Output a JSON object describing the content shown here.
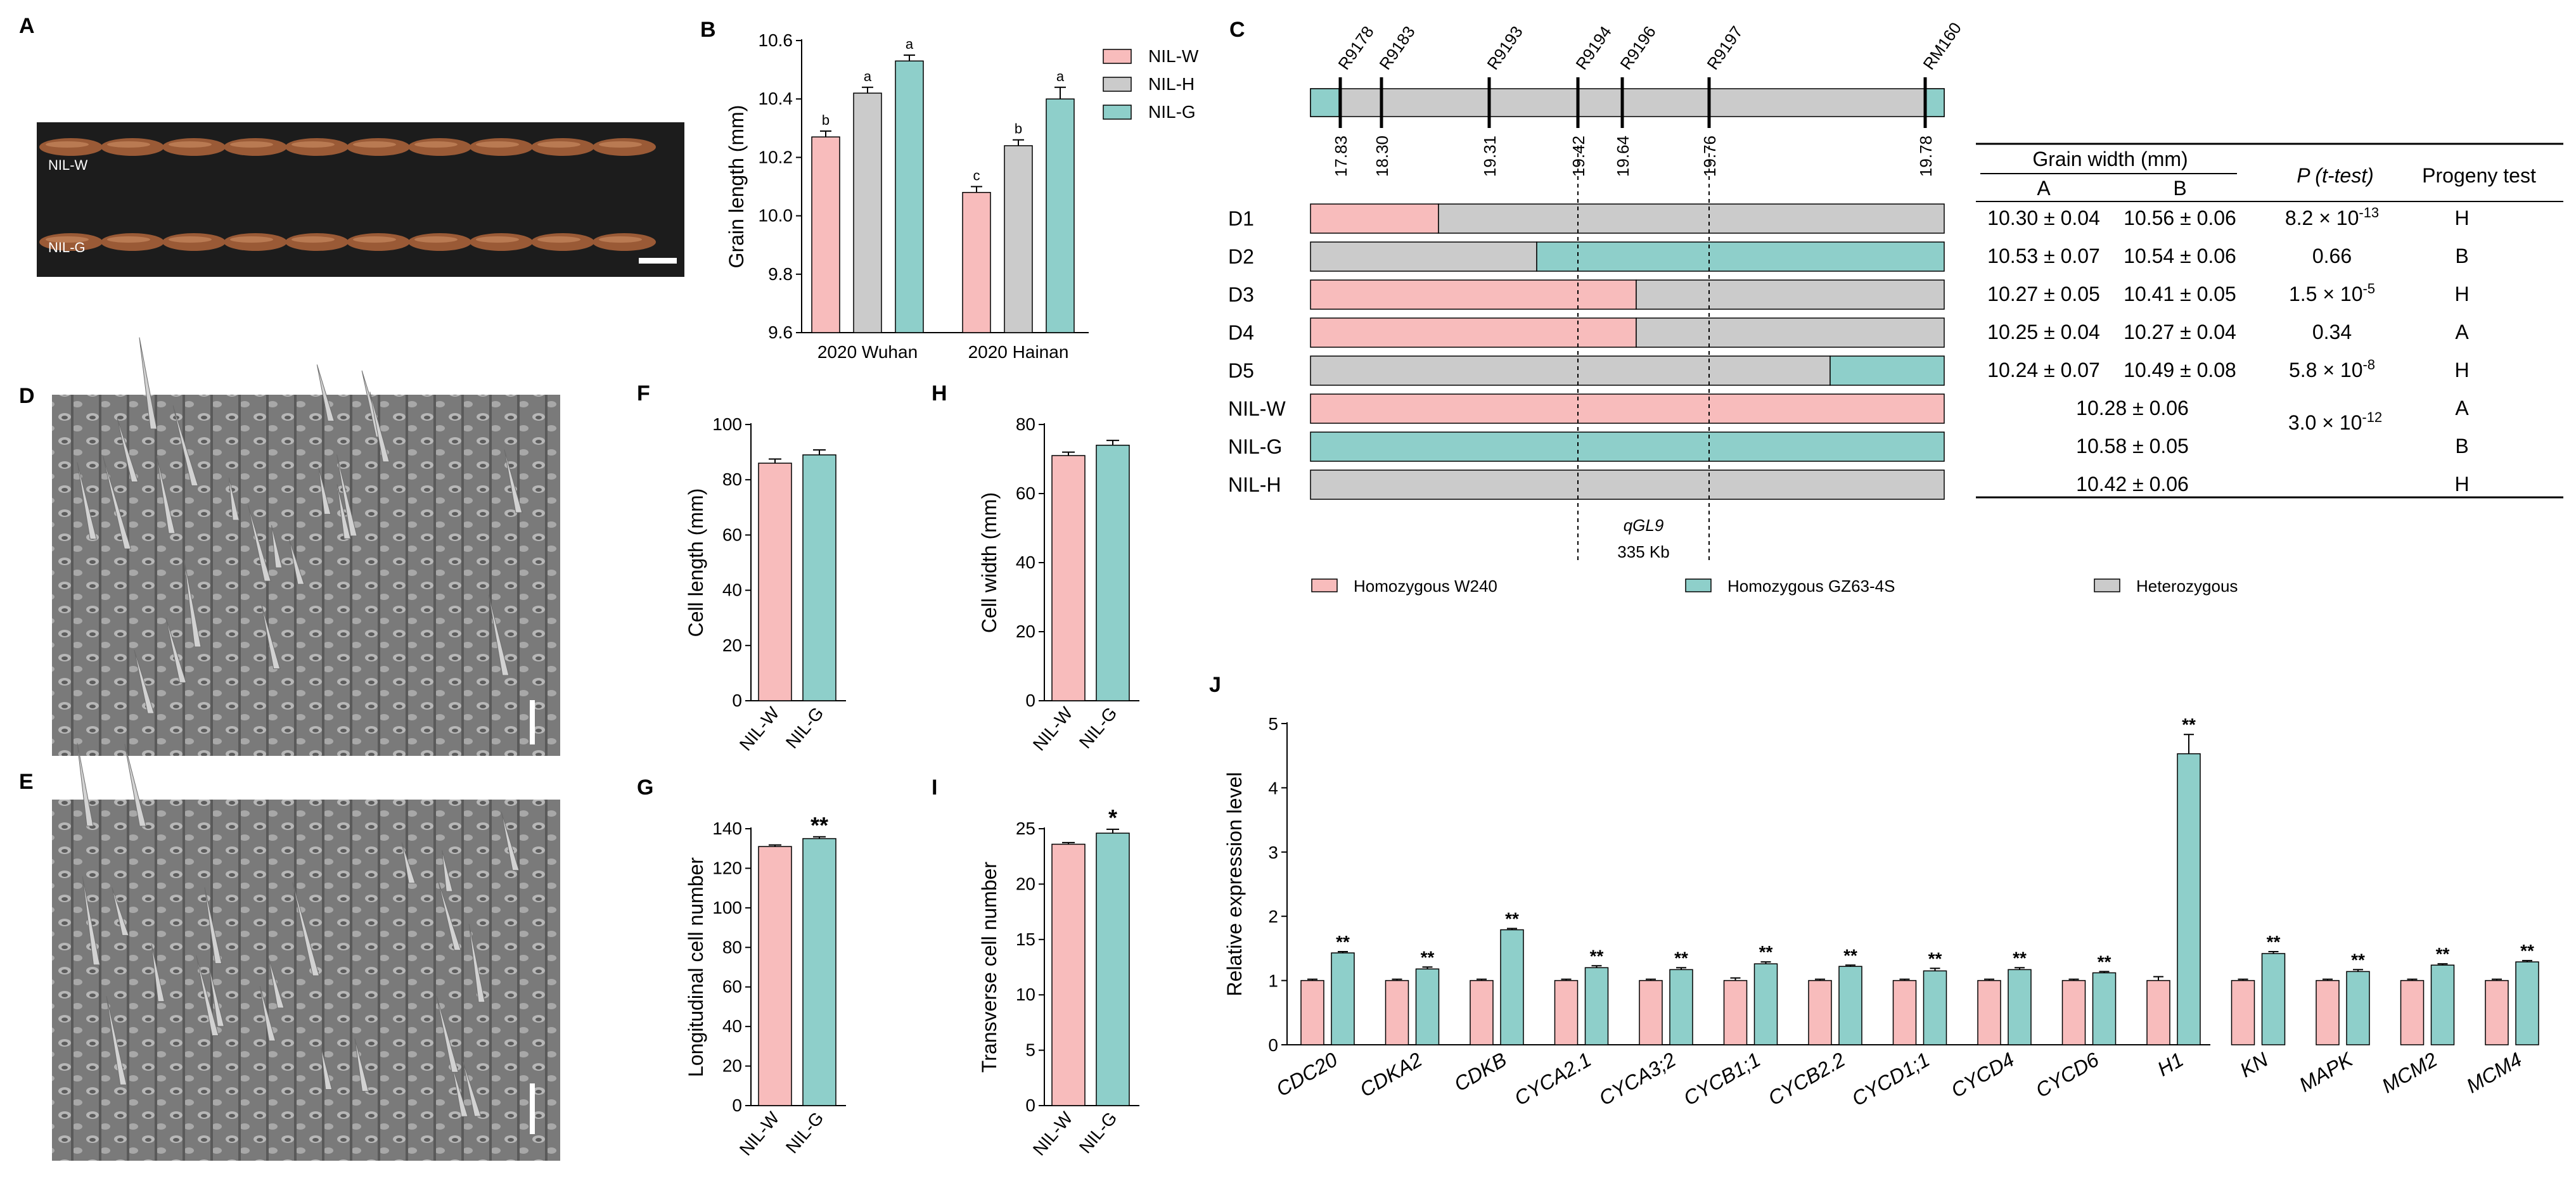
{
  "colors": {
    "nilw": "#F8BCBC",
    "nilh": "#CBCBCB",
    "nilg": "#8ECFCA",
    "axis": "#000000",
    "photo_dark": "#1a1a1a",
    "grain": "#9A5A36",
    "sem": "#8f8f8f"
  },
  "panel_labels": {
    "A": "A",
    "B": "B",
    "C": "C",
    "D": "D",
    "E": "E",
    "F": "F",
    "G": "G",
    "H": "H",
    "I": "I",
    "J": "J"
  },
  "panel_a": {
    "row1": "NIL-W",
    "row2": "NIL-G"
  },
  "chart_data": [
    {
      "id": "B",
      "type": "bar",
      "title": "",
      "ylabel": "Grain length (mm)",
      "ylim": [
        9.6,
        10.6
      ],
      "yticks": [
        "9.6",
        "9.8",
        "10.0",
        "10.2",
        "10.4",
        "10.6"
      ],
      "categories": [
        "2020 Wuhan",
        "2020 Hainan"
      ],
      "series": [
        {
          "name": "NIL-W",
          "values": [
            10.27,
            10.08
          ],
          "errors": [
            0.02,
            0.02
          ],
          "letters": [
            "b",
            "c"
          ]
        },
        {
          "name": "NIL-H",
          "values": [
            10.42,
            10.24
          ],
          "errors": [
            0.02,
            0.02
          ],
          "letters": [
            "a",
            "b"
          ]
        },
        {
          "name": "NIL-G",
          "values": [
            10.53,
            10.4
          ],
          "errors": [
            0.02,
            0.04
          ],
          "letters": [
            "a",
            "a"
          ]
        }
      ],
      "legend": [
        "NIL-W",
        "NIL-H",
        "NIL-G"
      ],
      "legend_position": "right"
    },
    {
      "id": "F",
      "type": "bar",
      "ylabel": "Cell length (mm)",
      "ylim": [
        0,
        100
      ],
      "yticks": [
        "0",
        "20",
        "40",
        "60",
        "80",
        "100"
      ],
      "categories": [
        "NIL-W",
        "NIL-G"
      ],
      "values": [
        86,
        89
      ],
      "errors": [
        1.5,
        1.8
      ],
      "sig": [
        "",
        ""
      ]
    },
    {
      "id": "H",
      "type": "bar",
      "ylabel": "Cell width (mm)",
      "ylim": [
        0,
        80
      ],
      "yticks": [
        "0",
        "20",
        "40",
        "60",
        "80"
      ],
      "categories": [
        "NIL-W",
        "NIL-G"
      ],
      "values": [
        71,
        74
      ],
      "errors": [
        1.0,
        1.4
      ],
      "sig": [
        "",
        ""
      ]
    },
    {
      "id": "G",
      "type": "bar",
      "ylabel": "Longitudinal cell number",
      "ylim": [
        0,
        140
      ],
      "yticks": [
        "0",
        "20",
        "40",
        "60",
        "80",
        "100",
        "120",
        "140"
      ],
      "categories": [
        "NIL-W",
        "NIL-G"
      ],
      "values": [
        131,
        135
      ],
      "errors": [
        0.8,
        0.9
      ],
      "sig": [
        "",
        "**"
      ]
    },
    {
      "id": "I",
      "type": "bar",
      "ylabel": "Transverse cell number",
      "ylim": [
        0,
        25
      ],
      "yticks": [
        "0",
        "5",
        "10",
        "15",
        "20",
        "25"
      ],
      "categories": [
        "NIL-W",
        "NIL-G"
      ],
      "values": [
        23.6,
        24.6
      ],
      "errors": [
        0.15,
        0.35
      ],
      "sig": [
        "",
        "*"
      ]
    },
    {
      "id": "J",
      "type": "bar",
      "ylabel": "Relative expression level",
      "ylim": [
        0,
        5
      ],
      "yticks": [
        "0",
        "1",
        "2",
        "3",
        "4",
        "5"
      ],
      "categories": [
        "CDC20",
        "CDKA2",
        "CDKB",
        "CYCA2.1",
        "CYCA3;2",
        "CYCB1;1",
        "CYCB2.2",
        "CYCD1;1",
        "CYCD4",
        "CYCD6",
        "H1",
        "KN",
        "MAPK",
        "MCM2",
        "MCM4"
      ],
      "series": [
        {
          "name": "NIL-W",
          "values": [
            1,
            1,
            1,
            1,
            1,
            1,
            1,
            1,
            1,
            1,
            1,
            1,
            1,
            1,
            1
          ],
          "errors": [
            0.02,
            0.02,
            0.02,
            0.02,
            0.02,
            0.04,
            0.02,
            0.02,
            0.02,
            0.02,
            0.06,
            0.02,
            0.02,
            0.02,
            0.02
          ]
        },
        {
          "name": "NIL-G",
          "values": [
            1.43,
            1.18,
            1.79,
            1.2,
            1.17,
            1.26,
            1.22,
            1.15,
            1.17,
            1.12,
            4.53,
            1.42,
            1.14,
            1.24,
            1.29
          ],
          "errors": [
            0.02,
            0.03,
            0.02,
            0.03,
            0.03,
            0.03,
            0.02,
            0.04,
            0.03,
            0.02,
            0.3,
            0.03,
            0.03,
            0.02,
            0.02
          ]
        }
      ],
      "sig": "**"
    }
  ],
  "panel_c": {
    "markers": [
      {
        "name": "R9178",
        "pos": "17.83"
      },
      {
        "name": "R9183",
        "pos": "18.30"
      },
      {
        "name": "R9193",
        "pos": "19.31"
      },
      {
        "name": "R9194",
        "pos": "19.42"
      },
      {
        "name": "R9196",
        "pos": "19.64"
      },
      {
        "name": "R9197",
        "pos": "19.76"
      },
      {
        "name": "RM160",
        "pos": "19.78"
      }
    ],
    "rows": [
      {
        "label": "D1",
        "a": "10.30 ± 0.04",
        "b": "10.56 ± 0.06",
        "p_base": "8.2 × 10",
        "p_exp": "-13",
        "progeny": "H"
      },
      {
        "label": "D2",
        "a": "10.53 ± 0.07",
        "b": "10.54 ± 0.06",
        "p_base": "0.66",
        "p_exp": "",
        "progeny": "B"
      },
      {
        "label": "D3",
        "a": "10.27 ± 0.05",
        "b": "10.41 ± 0.05",
        "p_base": "1.5 × 10",
        "p_exp": "-5",
        "progeny": "H"
      },
      {
        "label": "D4",
        "a": "10.25 ± 0.04",
        "b": "10.27 ± 0.04",
        "p_base": "0.34",
        "p_exp": "",
        "progeny": "A"
      },
      {
        "label": "D5",
        "a": "10.24 ± 0.07",
        "b": "10.49 ± 0.08",
        "p_base": "5.8 × 10",
        "p_exp": "-8",
        "progeny": "H"
      },
      {
        "label": "NIL-W",
        "ab": "10.28 ± 0.06",
        "progeny": "A"
      },
      {
        "label": "NIL-G",
        "ab": "10.58 ± 0.05",
        "progeny": "B"
      },
      {
        "label": "NIL-H",
        "ab": "10.42 ± 0.06",
        "progeny": "H"
      }
    ],
    "nil_p_base": "3.0 × 10",
    "nil_p_exp": "-12",
    "table_header": {
      "grain_width": "Grain width (mm)",
      "col_a": "A",
      "col_b": "B",
      "p_label": "P",
      "p_test": "(t-test)",
      "progeny": "Progeny test"
    },
    "qtl_name": "qGL9",
    "qtl_size": "335 Kb",
    "legend": {
      "w": "Homozygous W240",
      "g": "Homozygous GZ63-4S",
      "h": "Heterozygous"
    }
  }
}
